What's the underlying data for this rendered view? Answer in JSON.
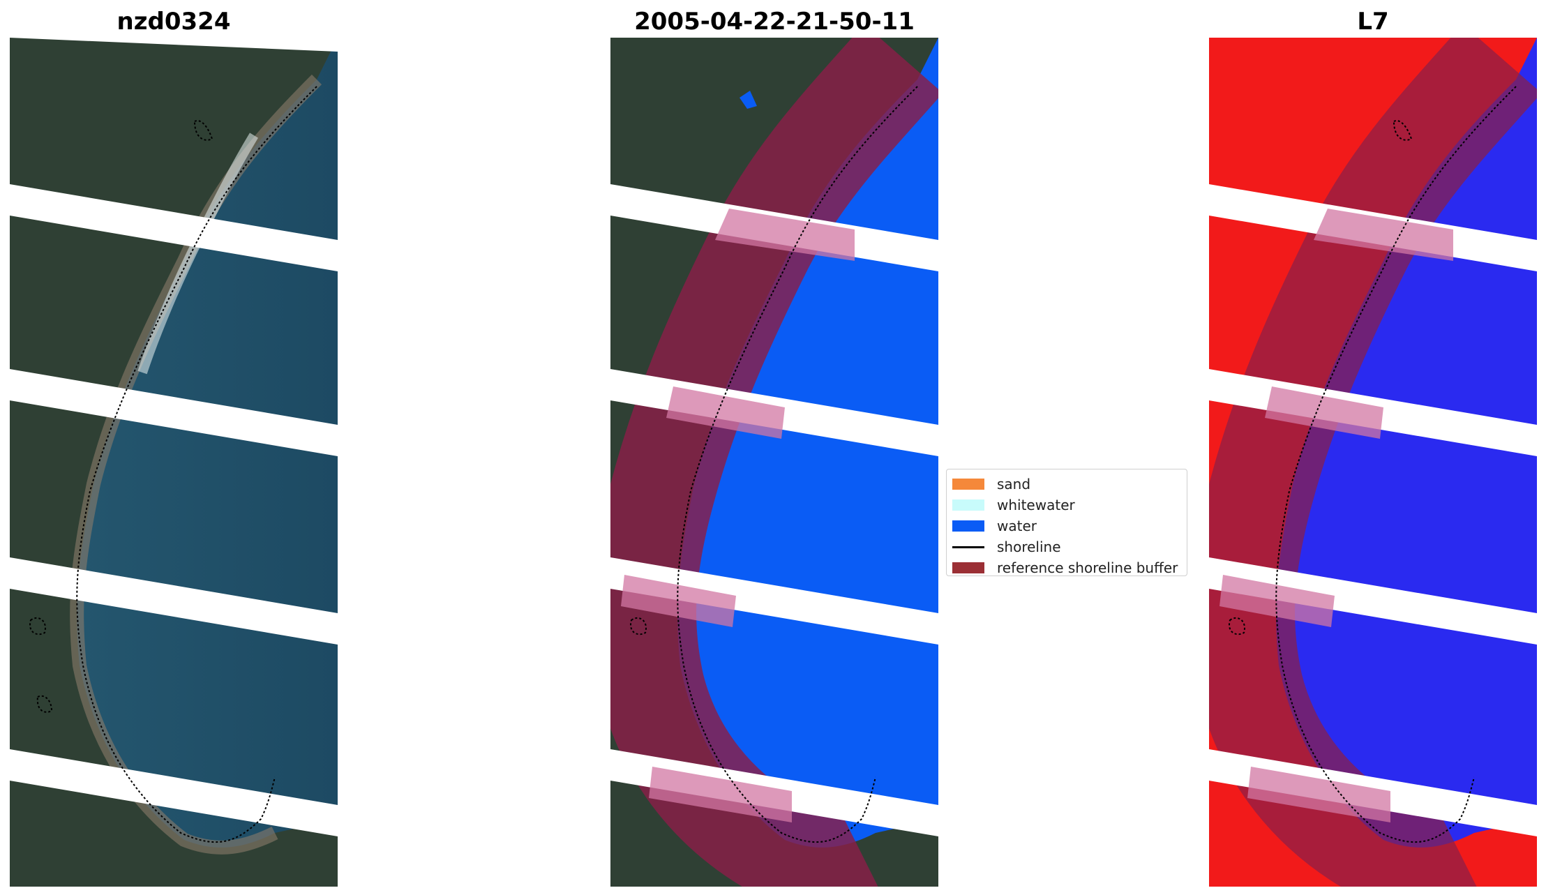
{
  "panels": [
    {
      "id": "rgb",
      "title": "nzd0324"
    },
    {
      "id": "classification",
      "title": "2005-04-22-21-50-11"
    },
    {
      "id": "index",
      "title": "L7"
    }
  ],
  "legend": {
    "items": [
      {
        "label": "sand",
        "color": "#f5883a",
        "kind": "patch"
      },
      {
        "label": "whitewater",
        "color": "#c8fbfb",
        "kind": "patch"
      },
      {
        "label": "water",
        "color": "#0a5cf5",
        "kind": "patch"
      },
      {
        "label": "shoreline",
        "color": "#000000",
        "kind": "line"
      },
      {
        "label": "reference shoreline buffer",
        "color": "#9b2f35",
        "kind": "patch"
      }
    ]
  },
  "colors": {
    "land_rgb": "#2e3f35",
    "sea_rgb": "#1f4f68",
    "land_index": "#f21a1a",
    "sea_index": "#2a2af0",
    "water_class": "#0a5cf5",
    "buffer": "#8a1f48"
  }
}
